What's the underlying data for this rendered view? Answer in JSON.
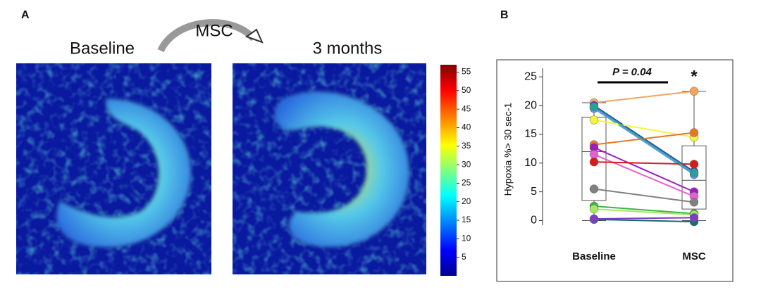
{
  "panel_a": {
    "label": "A",
    "arrow_label": "MSC",
    "left_title": "Baseline",
    "right_title": "3 months",
    "colorbar": {
      "lim": [
        0,
        57
      ],
      "ticks": [
        5,
        10,
        15,
        20,
        25,
        30,
        35,
        40,
        45,
        50,
        55
      ]
    }
  },
  "chart_data": {
    "type": "line",
    "panel_label": "B",
    "ylabel": "Hypoxia %> 30 sec-1",
    "annotation": "P = 0.04",
    "significance": "*",
    "categories": [
      "Baseline",
      "MSC"
    ],
    "ylim": [
      -0.8,
      26.5
    ],
    "yticks": [
      0,
      5,
      10,
      15,
      20,
      25
    ],
    "boxes": [
      {
        "whisker_low": 0,
        "q1": 3.5,
        "median": 12,
        "q3": 18,
        "whisker_high": 20.5
      },
      {
        "whisker_low": 0,
        "q1": 2,
        "median": 7,
        "q3": 13,
        "whisker_high": 22.5
      }
    ],
    "series": [
      {
        "color": "#f4a460",
        "values": [
          20.5,
          22.5
        ]
      },
      {
        "color": "#1f3fbf",
        "values": [
          20,
          8.5
        ]
      },
      {
        "color": "#5b9bd5",
        "values": [
          19.5,
          8
        ]
      },
      {
        "color": "#f5f53a",
        "values": [
          17.5,
          14.5
        ]
      },
      {
        "color": "#e87722",
        "values": [
          13.2,
          15.3
        ]
      },
      {
        "color": "#9b1fbf",
        "values": [
          12.7,
          5
        ]
      },
      {
        "color": "#e85fd0",
        "values": [
          11.5,
          4.2
        ]
      },
      {
        "color": "#d81b1b",
        "values": [
          10.2,
          9.8
        ]
      },
      {
        "color": "#2a9d9d",
        "values": [
          19.8,
          8.3
        ]
      },
      {
        "color": "#808080",
        "values": [
          5.5,
          3.2
        ]
      },
      {
        "color": "#3cb44b",
        "values": [
          2.5,
          1.2
        ]
      },
      {
        "color": "#a6e85c",
        "values": [
          2,
          1
        ]
      },
      {
        "color": "#176d6d",
        "values": [
          0.2,
          -0.2
        ]
      },
      {
        "color": "#7b3fbf",
        "values": [
          0.3,
          0.5
        ]
      }
    ]
  }
}
